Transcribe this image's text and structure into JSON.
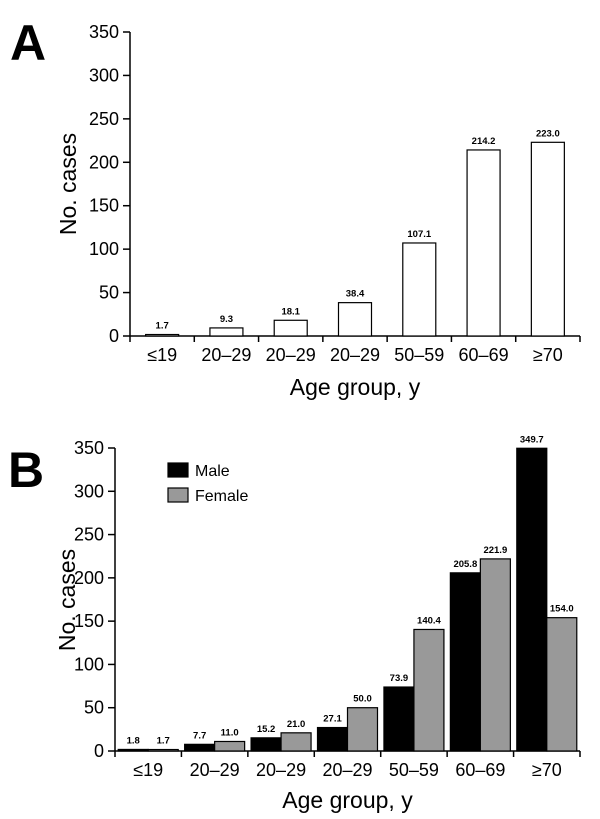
{
  "chart_data": [
    {
      "panel": "A",
      "type": "bar",
      "categories": [
        "≤19",
        "20–29",
        "20–29",
        "20–29",
        "50–59",
        "60–69",
        "≥70"
      ],
      "series": [
        {
          "name": "",
          "values": [
            1.7,
            9.3,
            18.1,
            38.4,
            107.1,
            214.2,
            223.0
          ],
          "color": "#ffffff"
        }
      ],
      "data_labels": [
        [
          "1.7",
          "9.3",
          "18.1",
          "38.4",
          "107.1",
          "214.2",
          "223.0"
        ]
      ],
      "xlabel": "Age group, y",
      "ylabel": "No. cases",
      "ylim": [
        0,
        350
      ],
      "yticks": [
        0,
        50,
        100,
        150,
        200,
        250,
        300,
        350
      ],
      "grid": false,
      "legend": null
    },
    {
      "panel": "B",
      "type": "bar",
      "categories": [
        "≤19",
        "20–29",
        "20–29",
        "20–29",
        "50–59",
        "60–69",
        "≥70"
      ],
      "series": [
        {
          "name": "Male",
          "values": [
            1.8,
            7.7,
            15.2,
            27.1,
            73.9,
            205.8,
            349.7
          ],
          "color": "#000000"
        },
        {
          "name": "Female",
          "values": [
            1.7,
            11.0,
            21.0,
            50.0,
            140.4,
            221.9,
            154.0
          ],
          "color": "#999999"
        }
      ],
      "data_labels": [
        [
          "1.8",
          "7.7",
          "15.2",
          "27.1",
          "73.9",
          "205.8",
          "349.7"
        ],
        [
          "1.7",
          "11.0",
          "21.0",
          "50.0",
          "140.4",
          "221.9",
          "154.0"
        ]
      ],
      "xlabel": "Age group, y",
      "ylabel": "No. cases",
      "ylim": [
        0,
        350
      ],
      "yticks": [
        0,
        50,
        100,
        150,
        200,
        250,
        300,
        350
      ],
      "grid": false,
      "legend": "top-left"
    }
  ]
}
